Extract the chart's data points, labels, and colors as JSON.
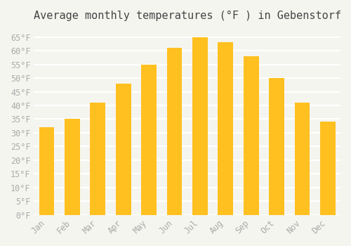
{
  "title": "Average monthly temperatures (°F ) in Gebenstorf",
  "months": [
    "Jan",
    "Feb",
    "Mar",
    "Apr",
    "May",
    "Jun",
    "Jul",
    "Aug",
    "Sep",
    "Oct",
    "Nov",
    "Dec"
  ],
  "values": [
    32,
    35,
    41,
    48,
    55,
    61,
    65,
    63,
    58,
    50,
    41,
    34
  ],
  "bar_color_top": "#FFC020",
  "bar_color_bottom": "#FFB020",
  "ylim": [
    0,
    68
  ],
  "yticks": [
    0,
    5,
    10,
    15,
    20,
    25,
    30,
    35,
    40,
    45,
    50,
    55,
    60,
    65
  ],
  "ylabel_suffix": "°F",
  "background_color": "#f5f5f0",
  "grid_color": "#ffffff",
  "title_fontsize": 11,
  "tick_fontsize": 8.5,
  "font_family": "monospace"
}
